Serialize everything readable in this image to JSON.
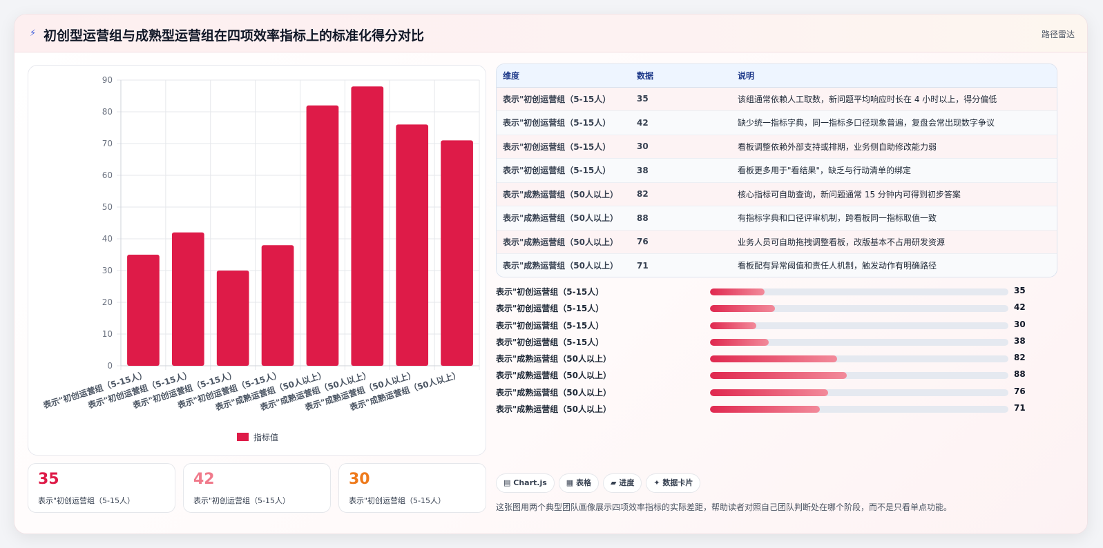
{
  "header": {
    "icon": "lightning-icon",
    "title": "初创型运营组与成熟型运营组在四项效率指标上的标准化得分对比",
    "tag": "路径雷达"
  },
  "colors": {
    "bar": "#de1b48",
    "accent_pink": "#f07a8b",
    "accent_orange": "#ee7a1c"
  },
  "chart_data": {
    "type": "bar",
    "categories": [
      "表示\"初创运营组（5-15人）",
      "表示\"初创运营组（5-15人）",
      "表示\"初创运营组（5-15人）",
      "表示\"初创运营组（5-15人）",
      "表示\"成熟运营组（50人以上）",
      "表示\"成熟运营组（50人以上）",
      "表示\"成熟运营组（50人以上）",
      "表示\"成熟运营组（50人以上）"
    ],
    "series": [
      {
        "name": "指标值",
        "values": [
          35,
          42,
          30,
          38,
          82,
          88,
          76,
          71
        ]
      }
    ],
    "ylim": [
      0,
      90
    ],
    "yticks": [
      0,
      10,
      20,
      30,
      40,
      50,
      60,
      70,
      80,
      90
    ],
    "grid": true,
    "legend": "bottom"
  },
  "stats": [
    {
      "value": "35",
      "label": "表示\"初创运营组（5-15人）",
      "color": "#de1b48"
    },
    {
      "value": "42",
      "label": "表示\"初创运营组（5-15人）",
      "color": "#f07a8b"
    },
    {
      "value": "30",
      "label": "表示\"初创运营组（5-15人）",
      "color": "#ee7a1c"
    }
  ],
  "table": {
    "headers": [
      "维度",
      "数据",
      "说明"
    ],
    "rows": [
      [
        "表示\"初创运营组（5-15人）",
        "35",
        "该组通常依赖人工取数，新问题平均响应时长在 4 小时以上，得分偏低"
      ],
      [
        "表示\"初创运营组（5-15人）",
        "42",
        "缺少统一指标字典，同一指标多口径现象普遍，复盘会常出现数字争议"
      ],
      [
        "表示\"初创运营组（5-15人）",
        "30",
        "看板调整依赖外部支持或排期，业务侧自助修改能力弱"
      ],
      [
        "表示\"初创运营组（5-15人）",
        "38",
        "看板更多用于\"看结果\"，缺乏与行动清单的绑定"
      ],
      [
        "表示\"成熟运营组（50人以上）",
        "82",
        "核心指标可自助查询，新问题通常 15 分钟内可得到初步答案"
      ],
      [
        "表示\"成熟运营组（50人以上）",
        "88",
        "有指标字典和口径评审机制，跨看板同一指标取值一致"
      ],
      [
        "表示\"成熟运营组（50人以上）",
        "76",
        "业务人员可自助拖拽调整看板，改版基本不占用研发资源"
      ],
      [
        "表示\"成熟运营组（50人以上）",
        "71",
        "看板配有异常阈值和责任人机制，触发动作有明确路径"
      ]
    ]
  },
  "progress": [
    {
      "label": "表示\"初创运营组（5-15人）",
      "value": "35",
      "fraction": 0.35
    },
    {
      "label": "表示\"初创运营组（5-15人）",
      "value": "42",
      "fraction": 0.42
    },
    {
      "label": "表示\"初创运营组（5-15人）",
      "value": "30",
      "fraction": 0.3
    },
    {
      "label": "表示\"初创运营组（5-15人）",
      "value": "38",
      "fraction": 0.38
    },
    {
      "label": "表示\"成熟运营组（50人以上）",
      "value": "82",
      "fraction": 0.82
    },
    {
      "label": "表示\"成熟运营组（50人以上）",
      "value": "88",
      "fraction": 0.88
    },
    {
      "label": "表示\"成熟运营组（50人以上）",
      "value": "76",
      "fraction": 0.76
    },
    {
      "label": "表示\"成熟运营组（50人以上）",
      "value": "71",
      "fraction": 0.71
    }
  ],
  "chips": [
    {
      "icon": "chart-icon",
      "glyph": "▤",
      "label": "Chart.js"
    },
    {
      "icon": "table-icon",
      "glyph": "▦",
      "label": "表格"
    },
    {
      "icon": "progress-icon",
      "glyph": "▰",
      "label": "进度"
    },
    {
      "icon": "card-icon",
      "glyph": "✦",
      "label": "数据卡片"
    }
  ],
  "footer_note": "这张图用两个典型团队画像展示四项效率指标的实际差距，帮助读者对照自己团队判断处在哪个阶段，而不是只看单点功能。"
}
